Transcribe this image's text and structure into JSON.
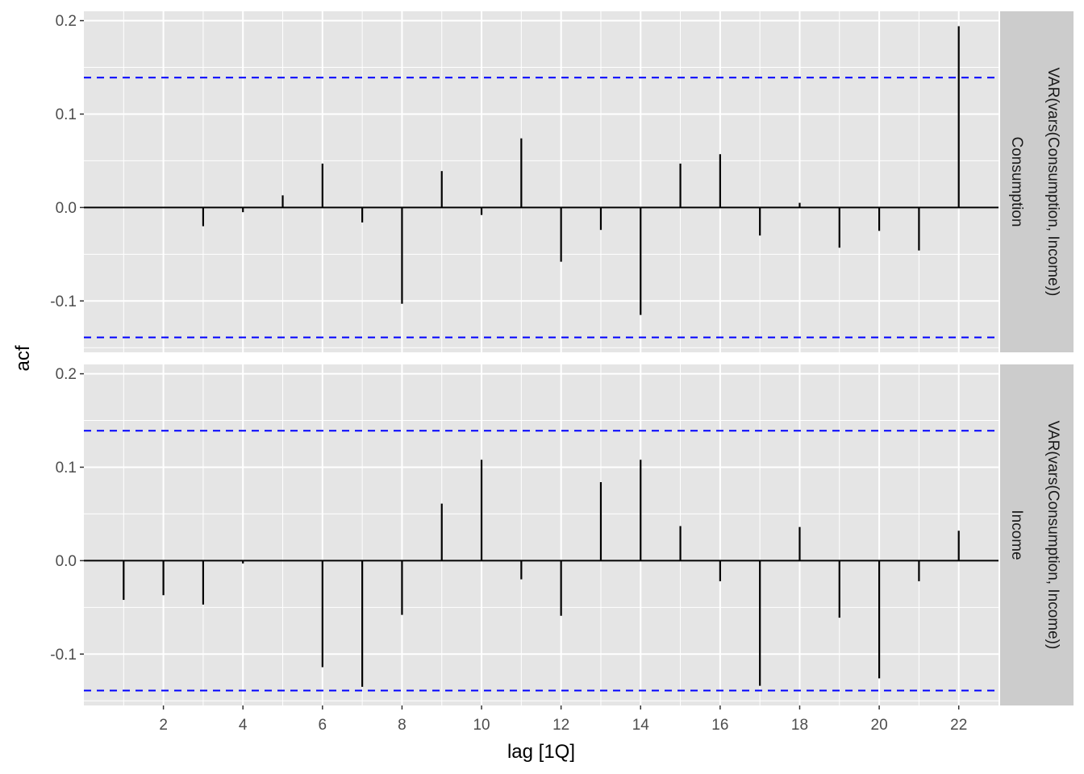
{
  "chart_data": {
    "type": "bar",
    "xlabel": "lag [1Q]",
    "ylabel": "acf",
    "x_ticks": [
      2,
      4,
      6,
      8,
      10,
      12,
      14,
      16,
      18,
      20,
      22
    ],
    "y_ticks": [
      -0.1,
      0.0,
      0.1,
      0.2
    ],
    "y_tick_labels": [
      "-0.1",
      "0.0",
      "0.1",
      "0.2"
    ],
    "xlim": [
      0,
      23
    ],
    "ylim": [
      -0.155,
      0.21
    ],
    "grid": true,
    "colors": {
      "panel_bg": "#e5e5e5",
      "grid": "#ffffff",
      "bar": "#000000",
      "ci": "#0000ff",
      "strip_bg": "#cccccc"
    },
    "panels": [
      {
        "strip_outer": "VAR(vars(Consumption, Income))",
        "strip_inner": "Consumption",
        "ci": 0.139,
        "lags": [
          1,
          2,
          3,
          4,
          5,
          6,
          7,
          8,
          9,
          10,
          11,
          12,
          13,
          14,
          15,
          16,
          17,
          18,
          19,
          20,
          21,
          22
        ],
        "values": [
          0.0,
          0.0,
          -0.02,
          -0.005,
          0.013,
          0.047,
          -0.016,
          -0.103,
          0.039,
          -0.008,
          0.074,
          -0.058,
          -0.024,
          -0.115,
          0.047,
          0.057,
          -0.03,
          0.005,
          -0.043,
          -0.025,
          -0.046,
          0.194
        ]
      },
      {
        "strip_outer": "VAR(vars(Consumption, Income))",
        "strip_inner": "Income",
        "ci": 0.139,
        "lags": [
          1,
          2,
          3,
          4,
          5,
          6,
          7,
          8,
          9,
          10,
          11,
          12,
          13,
          14,
          15,
          16,
          17,
          18,
          19,
          20,
          21,
          22
        ],
        "values": [
          -0.042,
          -0.037,
          -0.047,
          -0.003,
          0.0,
          -0.114,
          -0.135,
          -0.058,
          0.061,
          0.108,
          -0.02,
          -0.059,
          0.084,
          0.108,
          0.037,
          -0.022,
          -0.134,
          0.036,
          -0.061,
          -0.126,
          -0.022,
          0.032
        ]
      }
    ]
  }
}
